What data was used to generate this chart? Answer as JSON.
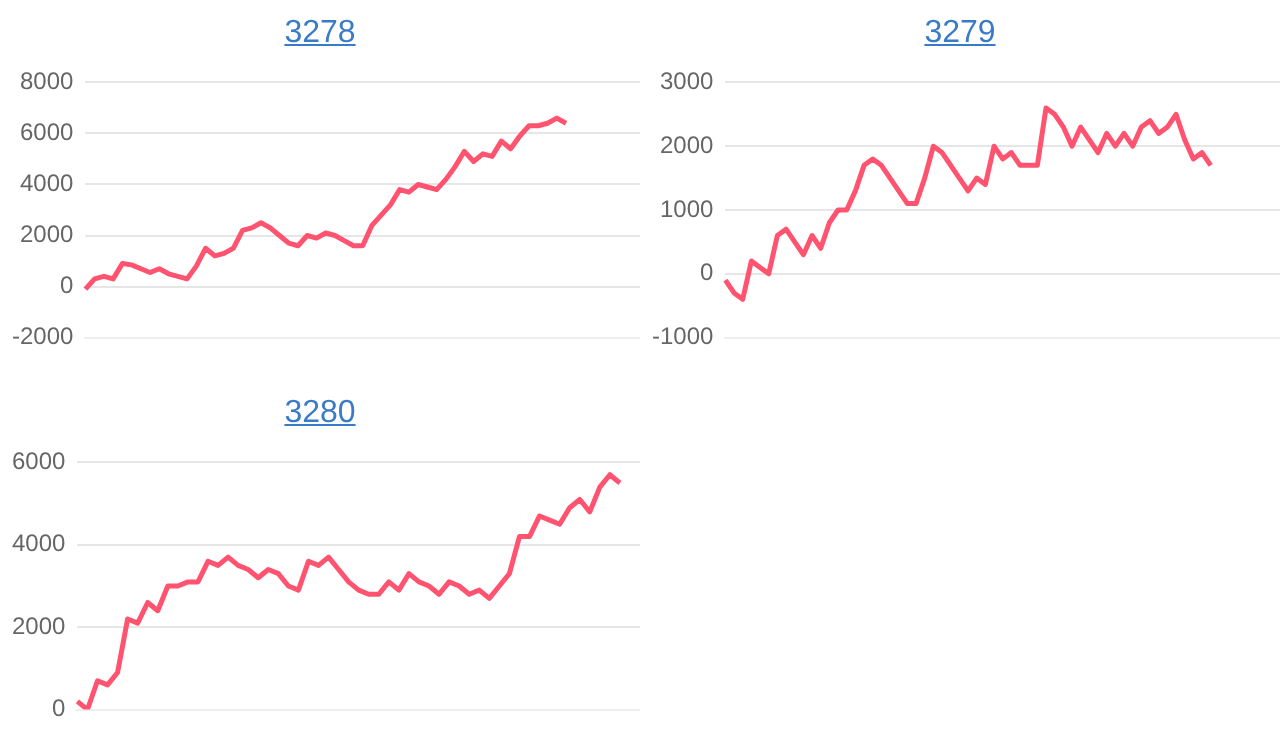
{
  "chart_data": [
    {
      "type": "line",
      "title": "3278",
      "categories": [
        null,
        null,
        null,
        null,
        null,
        null,
        null,
        null,
        null,
        null,
        null,
        null,
        null,
        null,
        null,
        null,
        null,
        null,
        null,
        null,
        null,
        null,
        null,
        null,
        null,
        null,
        null,
        null,
        null,
        null,
        null,
        null,
        null,
        null,
        null,
        null,
        null,
        null,
        null,
        null,
        null,
        null,
        null,
        null,
        null,
        null,
        null,
        null,
        null,
        null,
        null,
        null,
        null,
        null,
        null,
        null,
        null,
        null,
        null,
        null,
        null
      ],
      "series": [
        {
          "color": "#ff5370",
          "values": [
            -100,
            300,
            400,
            300,
            900,
            850,
            700,
            550,
            700,
            500,
            400,
            300,
            800,
            1500,
            1200,
            1300,
            1500,
            2200,
            2300,
            2500,
            2300,
            2000,
            1700,
            1600,
            2000,
            1900,
            2100,
            2000,
            1800,
            1600,
            1600,
            2400,
            2800,
            3200,
            3800,
            3700,
            4000,
            3900,
            3800,
            4200,
            4700,
            5300,
            4900,
            5200,
            5100,
            5700,
            5400,
            5900,
            6300,
            6300,
            6400,
            6600,
            6400,
            null,
            null,
            null,
            null,
            null,
            null,
            null,
            null
          ]
        }
      ],
      "ylim": [
        -2000,
        8000
      ],
      "yticks": [
        -2000,
        0,
        2000,
        4000,
        6000,
        8000
      ],
      "grid": "y",
      "tick_labels": "y"
    },
    {
      "type": "line",
      "title": "3279",
      "categories": [
        null,
        null,
        null,
        null,
        null,
        null,
        null,
        null,
        null,
        null,
        null,
        null,
        null,
        null,
        null,
        null,
        null,
        null,
        null,
        null,
        null,
        null,
        null,
        null,
        null,
        null,
        null,
        null,
        null,
        null,
        null,
        null,
        null,
        null,
        null,
        null,
        null,
        null,
        null,
        null,
        null,
        null,
        null,
        null,
        null,
        null,
        null,
        null,
        null,
        null,
        null,
        null,
        null,
        null,
        null,
        null,
        null,
        null,
        null,
        null,
        null,
        null,
        null,
        null,
        null
      ],
      "series": [
        {
          "color": "#ff5370",
          "values": [
            -100,
            -300,
            -400,
            200,
            100,
            0,
            600,
            700,
            500,
            300,
            600,
            400,
            800,
            1000,
            1000,
            1300,
            1700,
            1800,
            1700,
            1500,
            1300,
            1100,
            1100,
            1500,
            2000,
            1900,
            1700,
            1500,
            1300,
            1500,
            1400,
            2000,
            1800,
            1900,
            1700,
            1700,
            1700,
            2600,
            2500,
            2300,
            2000,
            2300,
            2100,
            1900,
            2200,
            2000,
            2200,
            2000,
            2300,
            2400,
            2200,
            2300,
            2500,
            2100,
            1800,
            1900,
            1700,
            null,
            null,
            null,
            null,
            null,
            null,
            null,
            null
          ]
        }
      ],
      "ylim": [
        -1000,
        3000
      ],
      "yticks": [
        -1000,
        0,
        1000,
        2000,
        3000
      ],
      "grid": "y",
      "tick_labels": "y"
    },
    {
      "type": "line",
      "title": "3280",
      "categories": [
        null,
        null,
        null,
        null,
        null,
        null,
        null,
        null,
        null,
        null,
        null,
        null,
        null,
        null,
        null,
        null,
        null,
        null,
        null,
        null,
        null,
        null,
        null,
        null,
        null,
        null,
        null,
        null,
        null,
        null,
        null,
        null,
        null,
        null,
        null,
        null,
        null,
        null,
        null,
        null,
        null,
        null,
        null,
        null,
        null,
        null,
        null,
        null,
        null,
        null,
        null,
        null,
        null,
        null,
        null,
        null,
        null
      ],
      "series": [
        {
          "color": "#ff5370",
          "values": [
            200,
            0,
            700,
            600,
            900,
            2200,
            2100,
            2600,
            2400,
            3000,
            3000,
            3100,
            3100,
            3600,
            3500,
            3700,
            3500,
            3400,
            3200,
            3400,
            3300,
            3000,
            2900,
            3600,
            3500,
            3700,
            3400,
            3100,
            2900,
            2800,
            2800,
            3100,
            2900,
            3300,
            3100,
            3000,
            2800,
            3100,
            3000,
            2800,
            2900,
            2700,
            3000,
            3300,
            4200,
            4200,
            4700,
            4600,
            4500,
            4900,
            5100,
            4800,
            5400,
            5700,
            5500,
            null,
            null
          ]
        }
      ],
      "ylim": [
        0,
        6000
      ],
      "yticks": [
        0,
        2000,
        4000,
        6000
      ],
      "grid": "y",
      "tick_labels": "y"
    }
  ]
}
